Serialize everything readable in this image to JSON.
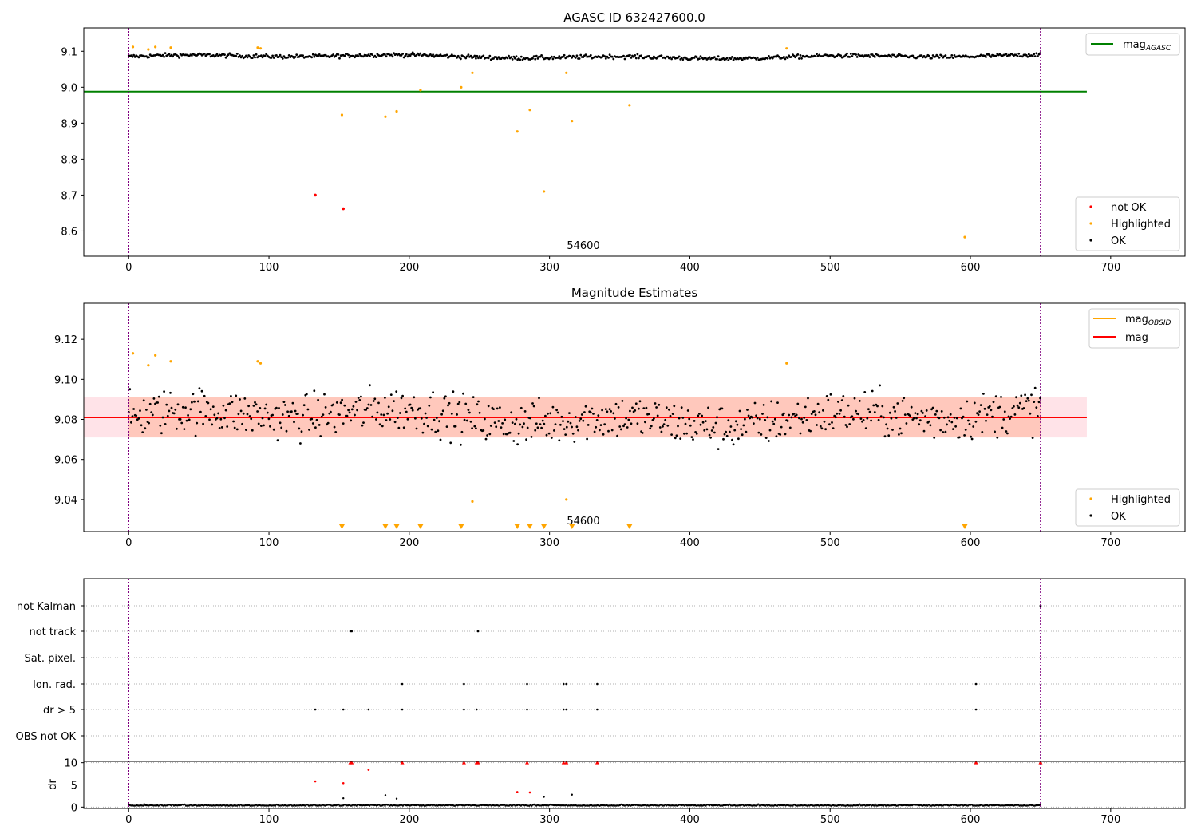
{
  "chart_data": [
    {
      "type": "scatter",
      "title": "AGASC ID 632427600.0",
      "annotation": "54600",
      "xlim": [
        -32,
        753
      ],
      "ylim": [
        8.53,
        9.165
      ],
      "xticks": [
        0,
        100,
        200,
        300,
        400,
        500,
        600,
        700
      ],
      "yticks": [
        8.6,
        8.7,
        8.8,
        8.9,
        9.0,
        9.1
      ],
      "ytick_labels": [
        "8.6",
        "8.7",
        "8.8",
        "8.9",
        "9.0",
        "9.1"
      ],
      "vlines": [
        0,
        650
      ],
      "hline": {
        "name": "mag_AGASC",
        "label_main": "mag",
        "label_sub": "AGASC",
        "y": 8.988,
        "x": [
          -32,
          683
        ],
        "color": "#008000"
      },
      "ok_band": {
        "center": 9.085,
        "amplitude": 0.012,
        "noise": 0.004
      },
      "series": [
        {
          "name": "not OK",
          "color": "#ff0000",
          "points": [
            [
              133,
              8.7
            ],
            [
              153,
              8.662
            ]
          ]
        },
        {
          "name": "Highlighted",
          "color": "#ffa500",
          "points": [
            [
              3,
              9.112
            ],
            [
              14,
              9.105
            ],
            [
              19,
              9.112
            ],
            [
              30,
              9.11
            ],
            [
              92,
              9.11
            ],
            [
              94,
              9.108
            ],
            [
              152,
              8.923
            ],
            [
              183,
              8.918
            ],
            [
              191,
              8.933
            ],
            [
              208,
              8.992
            ],
            [
              237,
              9.0
            ],
            [
              245,
              9.04
            ],
            [
              277,
              8.877
            ],
            [
              286,
              8.937
            ],
            [
              296,
              8.71
            ],
            [
              312,
              9.04
            ],
            [
              316,
              8.906
            ],
            [
              357,
              8.95
            ],
            [
              469,
              9.108
            ],
            [
              596,
              8.583
            ]
          ]
        },
        {
          "name": "OK",
          "color": "#000000"
        }
      ],
      "legend_position": "lower-right",
      "legend_line_position": "upper-right",
      "legend_entries": [
        "not OK",
        "Highlighted",
        "OK"
      ]
    },
    {
      "type": "scatter",
      "title": "Magnitude Estimates",
      "annotation": "54600",
      "xlim": [
        -32,
        753
      ],
      "ylim": [
        9.024,
        9.138
      ],
      "xticks": [
        0,
        100,
        200,
        300,
        400,
        500,
        600,
        700
      ],
      "yticks": [
        9.04,
        9.06,
        9.08,
        9.1,
        9.12
      ],
      "ytick_labels": [
        "9.04",
        "9.06",
        "9.08",
        "9.10",
        "9.12"
      ],
      "vlines": [
        0,
        650
      ],
      "mag_line": {
        "name": "mag",
        "y": 9.081,
        "x": [
          -32,
          683
        ],
        "color": "#ff0000"
      },
      "obsid_line": {
        "name": "mag_OBSID",
        "label_main": "mag",
        "label_sub": "OBSID",
        "y": 9.081,
        "x": [
          0,
          650
        ],
        "color": "#ffa500"
      },
      "band_outer": {
        "y": [
          9.071,
          9.091
        ],
        "x": [
          -32,
          683
        ],
        "color": "#ffc0cb"
      },
      "band_inner": {
        "y": [
          9.071,
          9.091
        ],
        "x": [
          0,
          650
        ],
        "color": "#ffa07a"
      },
      "ok_band": {
        "center": 9.081,
        "amplitude": 0.01,
        "noise": 0.008
      },
      "series": [
        {
          "name": "Highlighted",
          "color": "#ffa500",
          "points": [
            [
              3,
              9.113
            ],
            [
              14,
              9.107
            ],
            [
              19,
              9.112
            ],
            [
              30,
              9.109
            ],
            [
              92,
              9.109
            ],
            [
              94,
              9.108
            ],
            [
              245,
              9.039
            ],
            [
              312,
              9.04
            ],
            [
              469,
              9.108
            ]
          ]
        },
        {
          "name": "OK",
          "color": "#000000"
        }
      ],
      "below_range_markers": [
        152,
        183,
        191,
        208,
        237,
        277,
        286,
        296,
        316,
        357,
        596
      ],
      "legend_position": "lower-right",
      "legend_line_position": "upper-right",
      "legend_entries": [
        "Highlighted",
        "OK"
      ]
    },
    {
      "type": "scatter",
      "xlim": [
        -32,
        753
      ],
      "xticks": [
        0,
        100,
        200,
        300,
        400,
        500,
        600,
        700
      ],
      "vlines": [
        0,
        650
      ],
      "flag_labels": [
        "not Kalman",
        "not track",
        "Sat. pixel.",
        "Ion. rad.",
        "dr > 5",
        "OBS not OK"
      ],
      "flags": {
        "not Kalman": [
          650
        ],
        "not track": [
          158,
          159,
          249
        ],
        "Sat. pixel.": [],
        "Ion. rad.": [
          195,
          239,
          284,
          310,
          312,
          334,
          604
        ],
        "dr > 5": [
          133,
          153,
          171,
          195,
          239,
          248,
          284,
          310,
          312,
          334,
          604
        ],
        "OBS not OK": []
      },
      "dr_ylabel": "dr",
      "dr_ylim": [
        -0.3,
        10.3
      ],
      "dr_yticks": [
        0,
        5,
        10
      ],
      "dr_ytick_labels": [
        "0",
        "5",
        "10"
      ],
      "dr_clipped": [
        158,
        159,
        195,
        239,
        248,
        249,
        284,
        310,
        312,
        334,
        604,
        650
      ],
      "dr_red_points": [
        [
          133,
          5.8
        ],
        [
          153,
          5.4
        ],
        [
          171,
          8.4
        ],
        [
          277,
          3.4
        ],
        [
          286,
          3.3
        ]
      ],
      "dr_high_black": [
        [
          153,
          2.0
        ],
        [
          183,
          2.7
        ],
        [
          191,
          1.9
        ],
        [
          296,
          2.3
        ],
        [
          316,
          2.8
        ]
      ]
    }
  ]
}
